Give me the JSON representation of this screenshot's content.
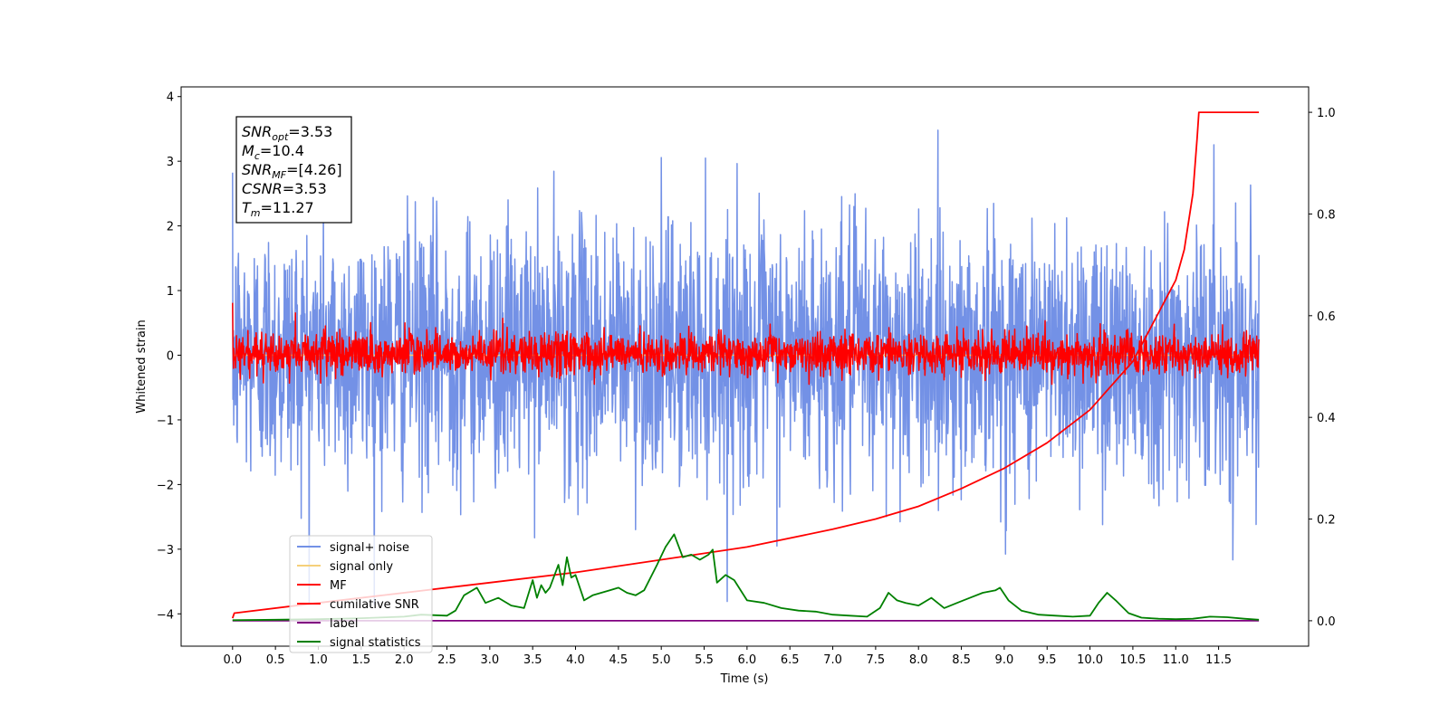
{
  "chart_data": {
    "type": "line",
    "xlabel": "Time (s)",
    "ylabel": "Whitened strain",
    "xlim": [
      -0.6,
      12.55
    ],
    "ylim": [
      -4.5,
      4.15
    ],
    "y2lim": [
      -0.05,
      1.05
    ],
    "x_ticks": [
      "0.0",
      "0.5",
      "1.0",
      "1.5",
      "2.0",
      "2.5",
      "3.0",
      "3.5",
      "4.0",
      "4.5",
      "5.0",
      "5.5",
      "6.0",
      "6.5",
      "7.0",
      "7.5",
      "8.0",
      "8.5",
      "9.0",
      "9.5",
      "10.0",
      "10.5",
      "11.0",
      "11.5"
    ],
    "y_ticks": [
      "4",
      "3",
      "2",
      "1",
      "0",
      "−1",
      "−2",
      "−3",
      "−4"
    ],
    "y2_ticks": [
      "1.0",
      "0.8",
      "0.6",
      "0.4",
      "0.2",
      "0.0"
    ],
    "legend_position": "lower-left",
    "annotation": {
      "lines": [
        {
          "sym": "SNR",
          "sub": "opt",
          "val": "=3.53"
        },
        {
          "sym": "M",
          "sub": "c",
          "val": "=10.4"
        },
        {
          "sym": "SNR",
          "sub": "MF",
          "val": "=[4.26]"
        },
        {
          "sym": "CSNR",
          "sub": "",
          "val": "=3.53"
        },
        {
          "sym": "T",
          "sub": "m",
          "val": "=11.27"
        }
      ]
    },
    "series": [
      {
        "name": "signal+ noise",
        "color": "#7391e6",
        "axis": "left",
        "kind": "noise",
        "x_range": [
          0.0,
          11.97
        ],
        "y_range": [
          -3.85,
          3.75
        ]
      },
      {
        "name": "signal only",
        "color": "#f5d07a",
        "axis": "left",
        "kind": "flat",
        "x_range": [
          0.0,
          11.97
        ],
        "y": 0.0
      },
      {
        "name": "MF",
        "color": "#ff0000",
        "axis": "left",
        "kind": "noise",
        "x_range": [
          0.0,
          11.97
        ],
        "y_range": [
          -0.45,
          0.9
        ]
      },
      {
        "name": "cumilative SNR",
        "color": "#ff0000",
        "axis": "right",
        "x": [
          0.0,
          0.02,
          1.0,
          2.0,
          3.0,
          4.0,
          5.0,
          6.0,
          7.0,
          7.5,
          8.0,
          8.5,
          9.0,
          9.5,
          10.0,
          10.5,
          11.0,
          11.1,
          11.2,
          11.25,
          11.27,
          11.97
        ],
        "y": [
          0.005,
          0.015,
          0.035,
          0.055,
          0.075,
          0.095,
          0.12,
          0.145,
          0.18,
          0.2,
          0.225,
          0.26,
          0.3,
          0.35,
          0.415,
          0.51,
          0.67,
          0.73,
          0.84,
          0.95,
          1.0,
          1.0
        ]
      },
      {
        "name": "label",
        "color": "#800080",
        "axis": "right",
        "x": [
          0.0,
          11.97
        ],
        "y": [
          0.0,
          0.0
        ]
      },
      {
        "name": "signal statistics",
        "color": "#008000",
        "axis": "right",
        "x": [
          0.0,
          0.5,
          1.0,
          1.5,
          2.0,
          2.2,
          2.5,
          2.6,
          2.7,
          2.85,
          2.95,
          3.1,
          3.25,
          3.4,
          3.5,
          3.55,
          3.6,
          3.65,
          3.7,
          3.8,
          3.85,
          3.9,
          3.95,
          4.0,
          4.1,
          4.2,
          4.3,
          4.4,
          4.5,
          4.6,
          4.7,
          4.8,
          4.95,
          5.05,
          5.15,
          5.25,
          5.35,
          5.45,
          5.55,
          5.6,
          5.65,
          5.75,
          5.85,
          6.0,
          6.2,
          6.4,
          6.6,
          6.8,
          7.0,
          7.2,
          7.4,
          7.55,
          7.65,
          7.75,
          7.85,
          8.0,
          8.15,
          8.3,
          8.45,
          8.6,
          8.75,
          8.9,
          8.95,
          9.05,
          9.2,
          9.4,
          9.6,
          9.8,
          10.0,
          10.1,
          10.2,
          10.3,
          10.45,
          10.6,
          10.8,
          11.0,
          11.2,
          11.4,
          11.6,
          11.8,
          11.97
        ],
        "y": [
          0.001,
          0.002,
          0.003,
          0.005,
          0.008,
          0.012,
          0.01,
          0.02,
          0.05,
          0.065,
          0.035,
          0.045,
          0.03,
          0.025,
          0.08,
          0.045,
          0.07,
          0.055,
          0.065,
          0.11,
          0.07,
          0.125,
          0.085,
          0.09,
          0.04,
          0.05,
          0.055,
          0.06,
          0.065,
          0.055,
          0.05,
          0.06,
          0.11,
          0.145,
          0.17,
          0.125,
          0.13,
          0.12,
          0.13,
          0.14,
          0.075,
          0.09,
          0.08,
          0.04,
          0.035,
          0.025,
          0.02,
          0.018,
          0.012,
          0.01,
          0.008,
          0.025,
          0.055,
          0.04,
          0.035,
          0.03,
          0.045,
          0.025,
          0.035,
          0.045,
          0.055,
          0.06,
          0.065,
          0.04,
          0.02,
          0.012,
          0.01,
          0.008,
          0.01,
          0.035,
          0.055,
          0.04,
          0.015,
          0.006,
          0.004,
          0.003,
          0.004,
          0.008,
          0.007,
          0.004,
          0.002
        ]
      }
    ]
  }
}
